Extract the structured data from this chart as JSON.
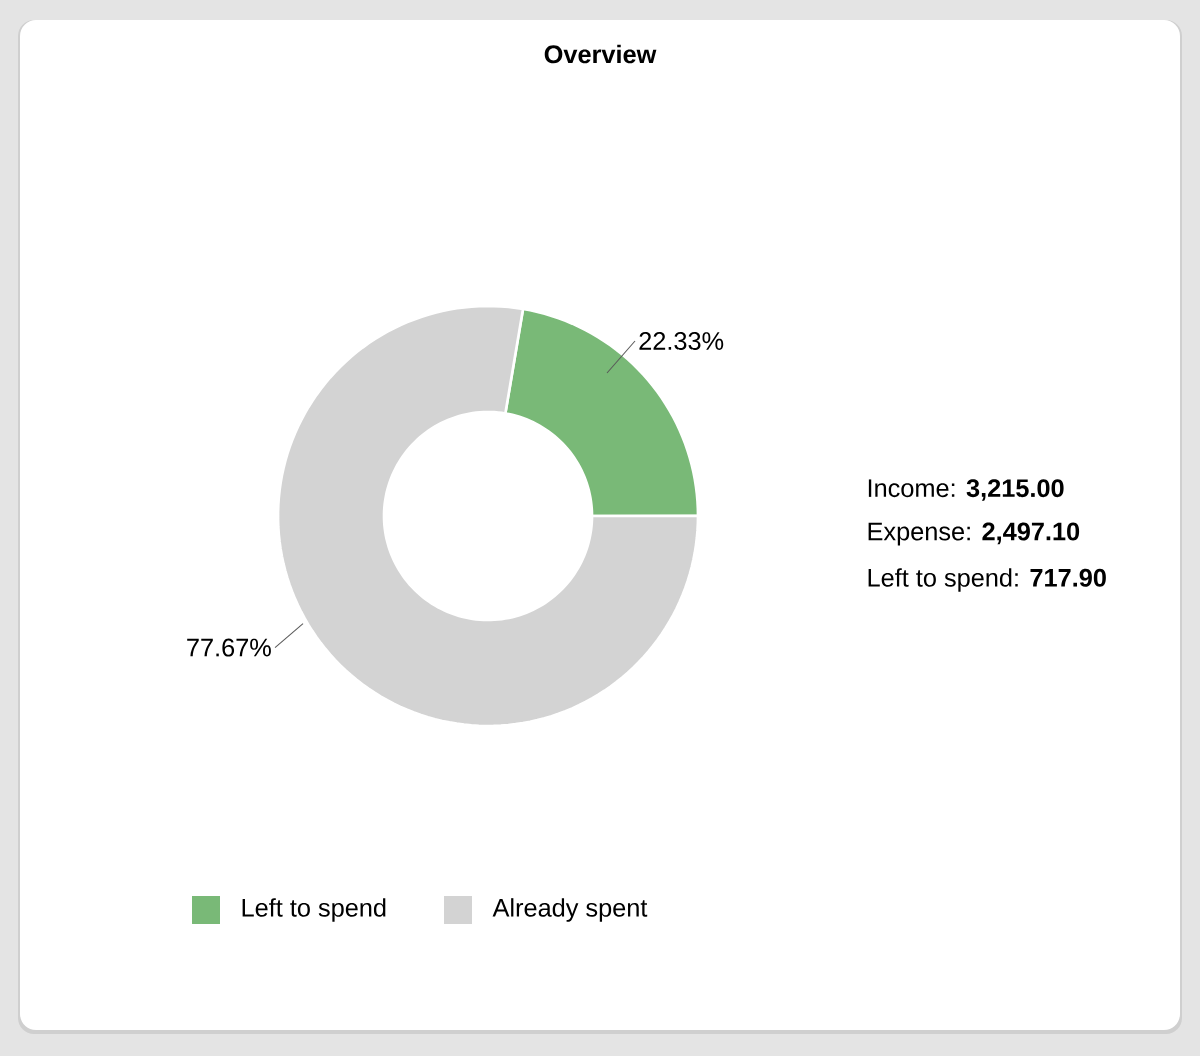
{
  "chart_data": {
    "type": "donut",
    "title": "Overview",
    "categories": [
      "Left to spend",
      "Already spent"
    ],
    "values": [
      22.33,
      77.67
    ],
    "colors": [
      "#79b977",
      "#d3d3d3"
    ],
    "value_labels": [
      "22.33%",
      "77.67%"
    ],
    "legend": "bottom",
    "annotations": [
      "Income: **3,215.00**",
      "Expense: **2,497.10**",
      "Left to spend: **717.90**"
    ]
  }
}
